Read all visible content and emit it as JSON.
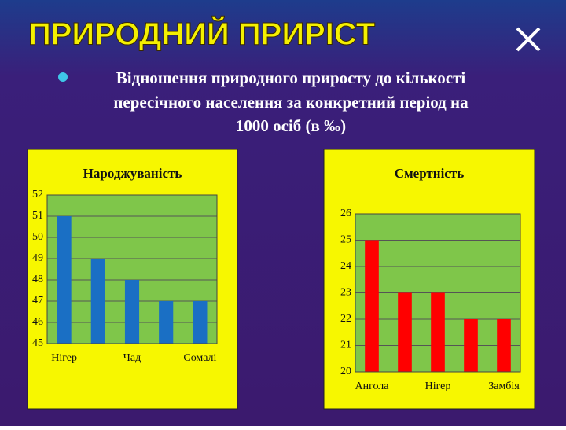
{
  "title": "ПРИРОДНИЙ ПРИРІСТ",
  "bullet_lines": [
    "Відношення природного приросту до кількості",
    "пересічного населення за конкретний період на",
    "1000 осіб (в ‰)"
  ],
  "chart_data": [
    {
      "type": "bar",
      "title": "Народжуваність",
      "categories": [
        "Нігер",
        null,
        "Чад",
        null,
        "Сомалі"
      ],
      "values": [
        51,
        49,
        48,
        47,
        47
      ],
      "color": "#1a6fc4",
      "ylim": [
        45,
        52
      ],
      "yticks": [
        45,
        46,
        47,
        48,
        49,
        50,
        51,
        52
      ],
      "grid": true
    },
    {
      "type": "bar",
      "title": "Смертність",
      "categories": [
        "Ангола",
        null,
        "Нігер",
        null,
        "Замбія"
      ],
      "values": [
        25,
        23,
        23,
        22,
        22
      ],
      "color": "#ff0000",
      "ylim": [
        20,
        26
      ],
      "yticks": [
        20,
        21,
        22,
        23,
        24,
        25,
        26
      ],
      "grid": true
    }
  ]
}
